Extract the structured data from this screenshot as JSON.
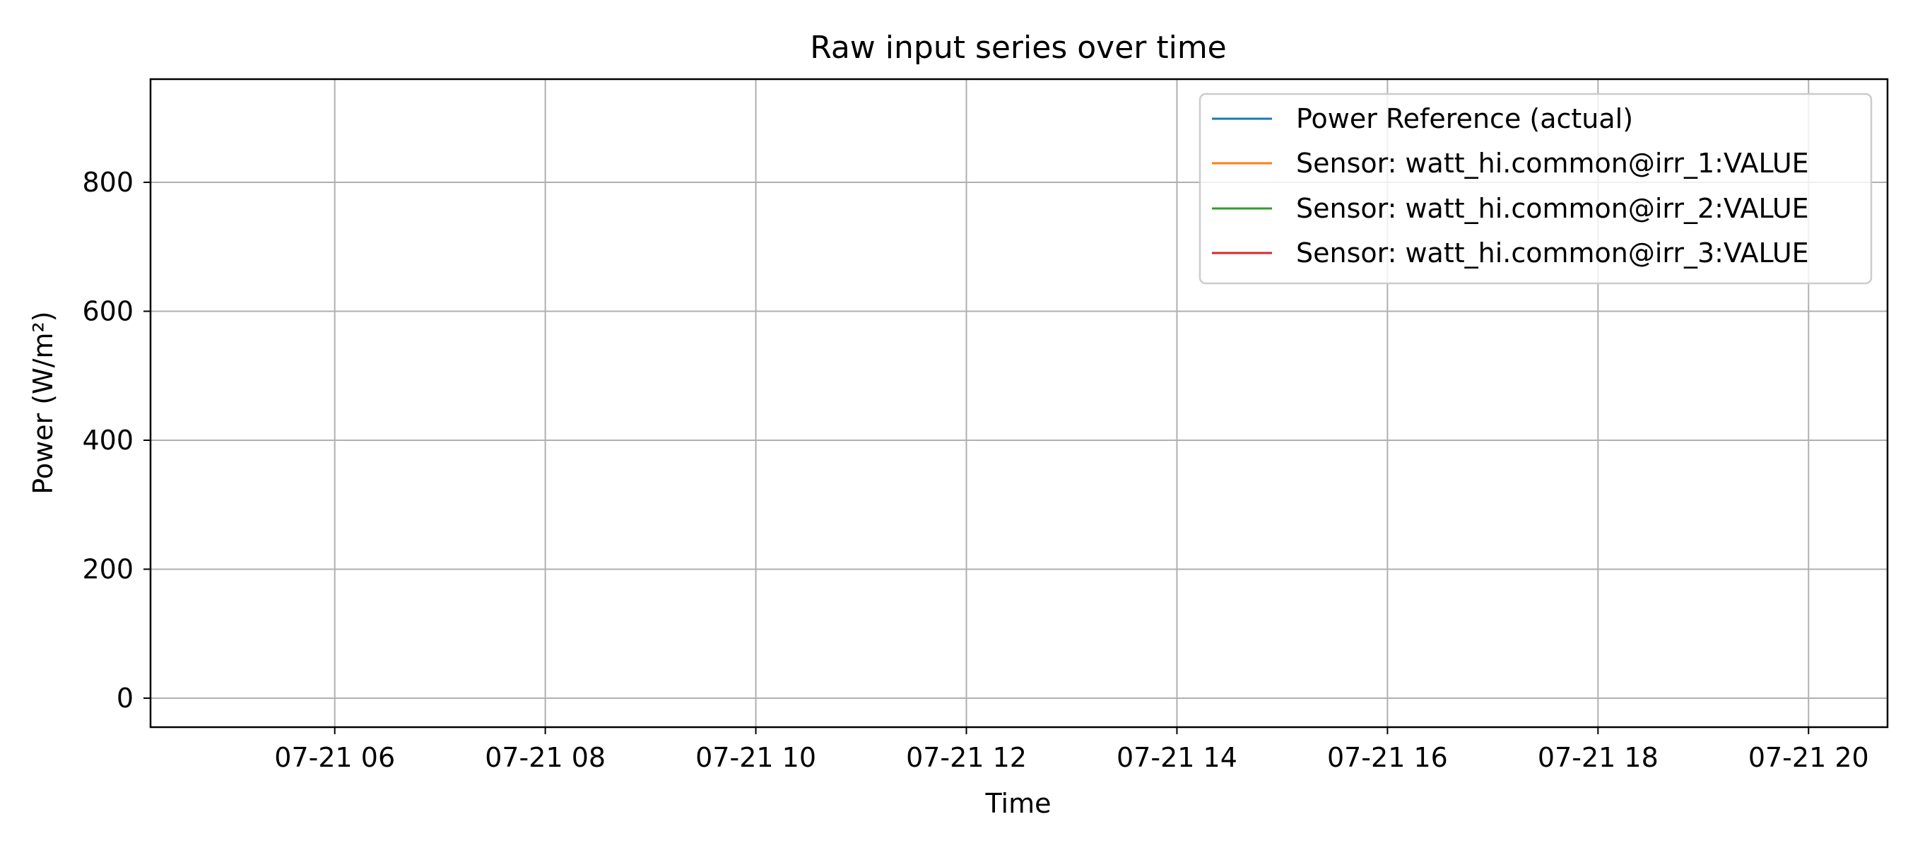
{
  "chart_data": {
    "type": "line",
    "title": "Raw input series over time",
    "xlabel": "Time",
    "ylabel": "Power (W/m²)",
    "x_ticks": [
      "07-21 06",
      "07-21 08",
      "07-21 10",
      "07-21 12",
      "07-21 14",
      "07-21 16",
      "07-21 18",
      "07-21 20"
    ],
    "x_tick_hours": [
      6,
      8,
      10,
      12,
      14,
      16,
      18,
      20
    ],
    "xlim": [
      4.25,
      20.75
    ],
    "y_ticks": [
      0,
      200,
      400,
      600,
      800
    ],
    "ylim": [
      -45,
      960
    ],
    "grid": true,
    "legend_position": "top-right",
    "series": [
      {
        "name": "Power Reference (actual)",
        "color": "#1f77b4",
        "values": []
      },
      {
        "name": "Sensor: watt_hi.common@irr_1:VALUE",
        "color": "#ff7f0e",
        "values": []
      },
      {
        "name": "Sensor: watt_hi.common@irr_2:VALUE",
        "color": "#2ca02c",
        "values": []
      },
      {
        "name": "Sensor: watt_hi.common@irr_3:VALUE",
        "color": "#d62728",
        "values": []
      }
    ]
  }
}
